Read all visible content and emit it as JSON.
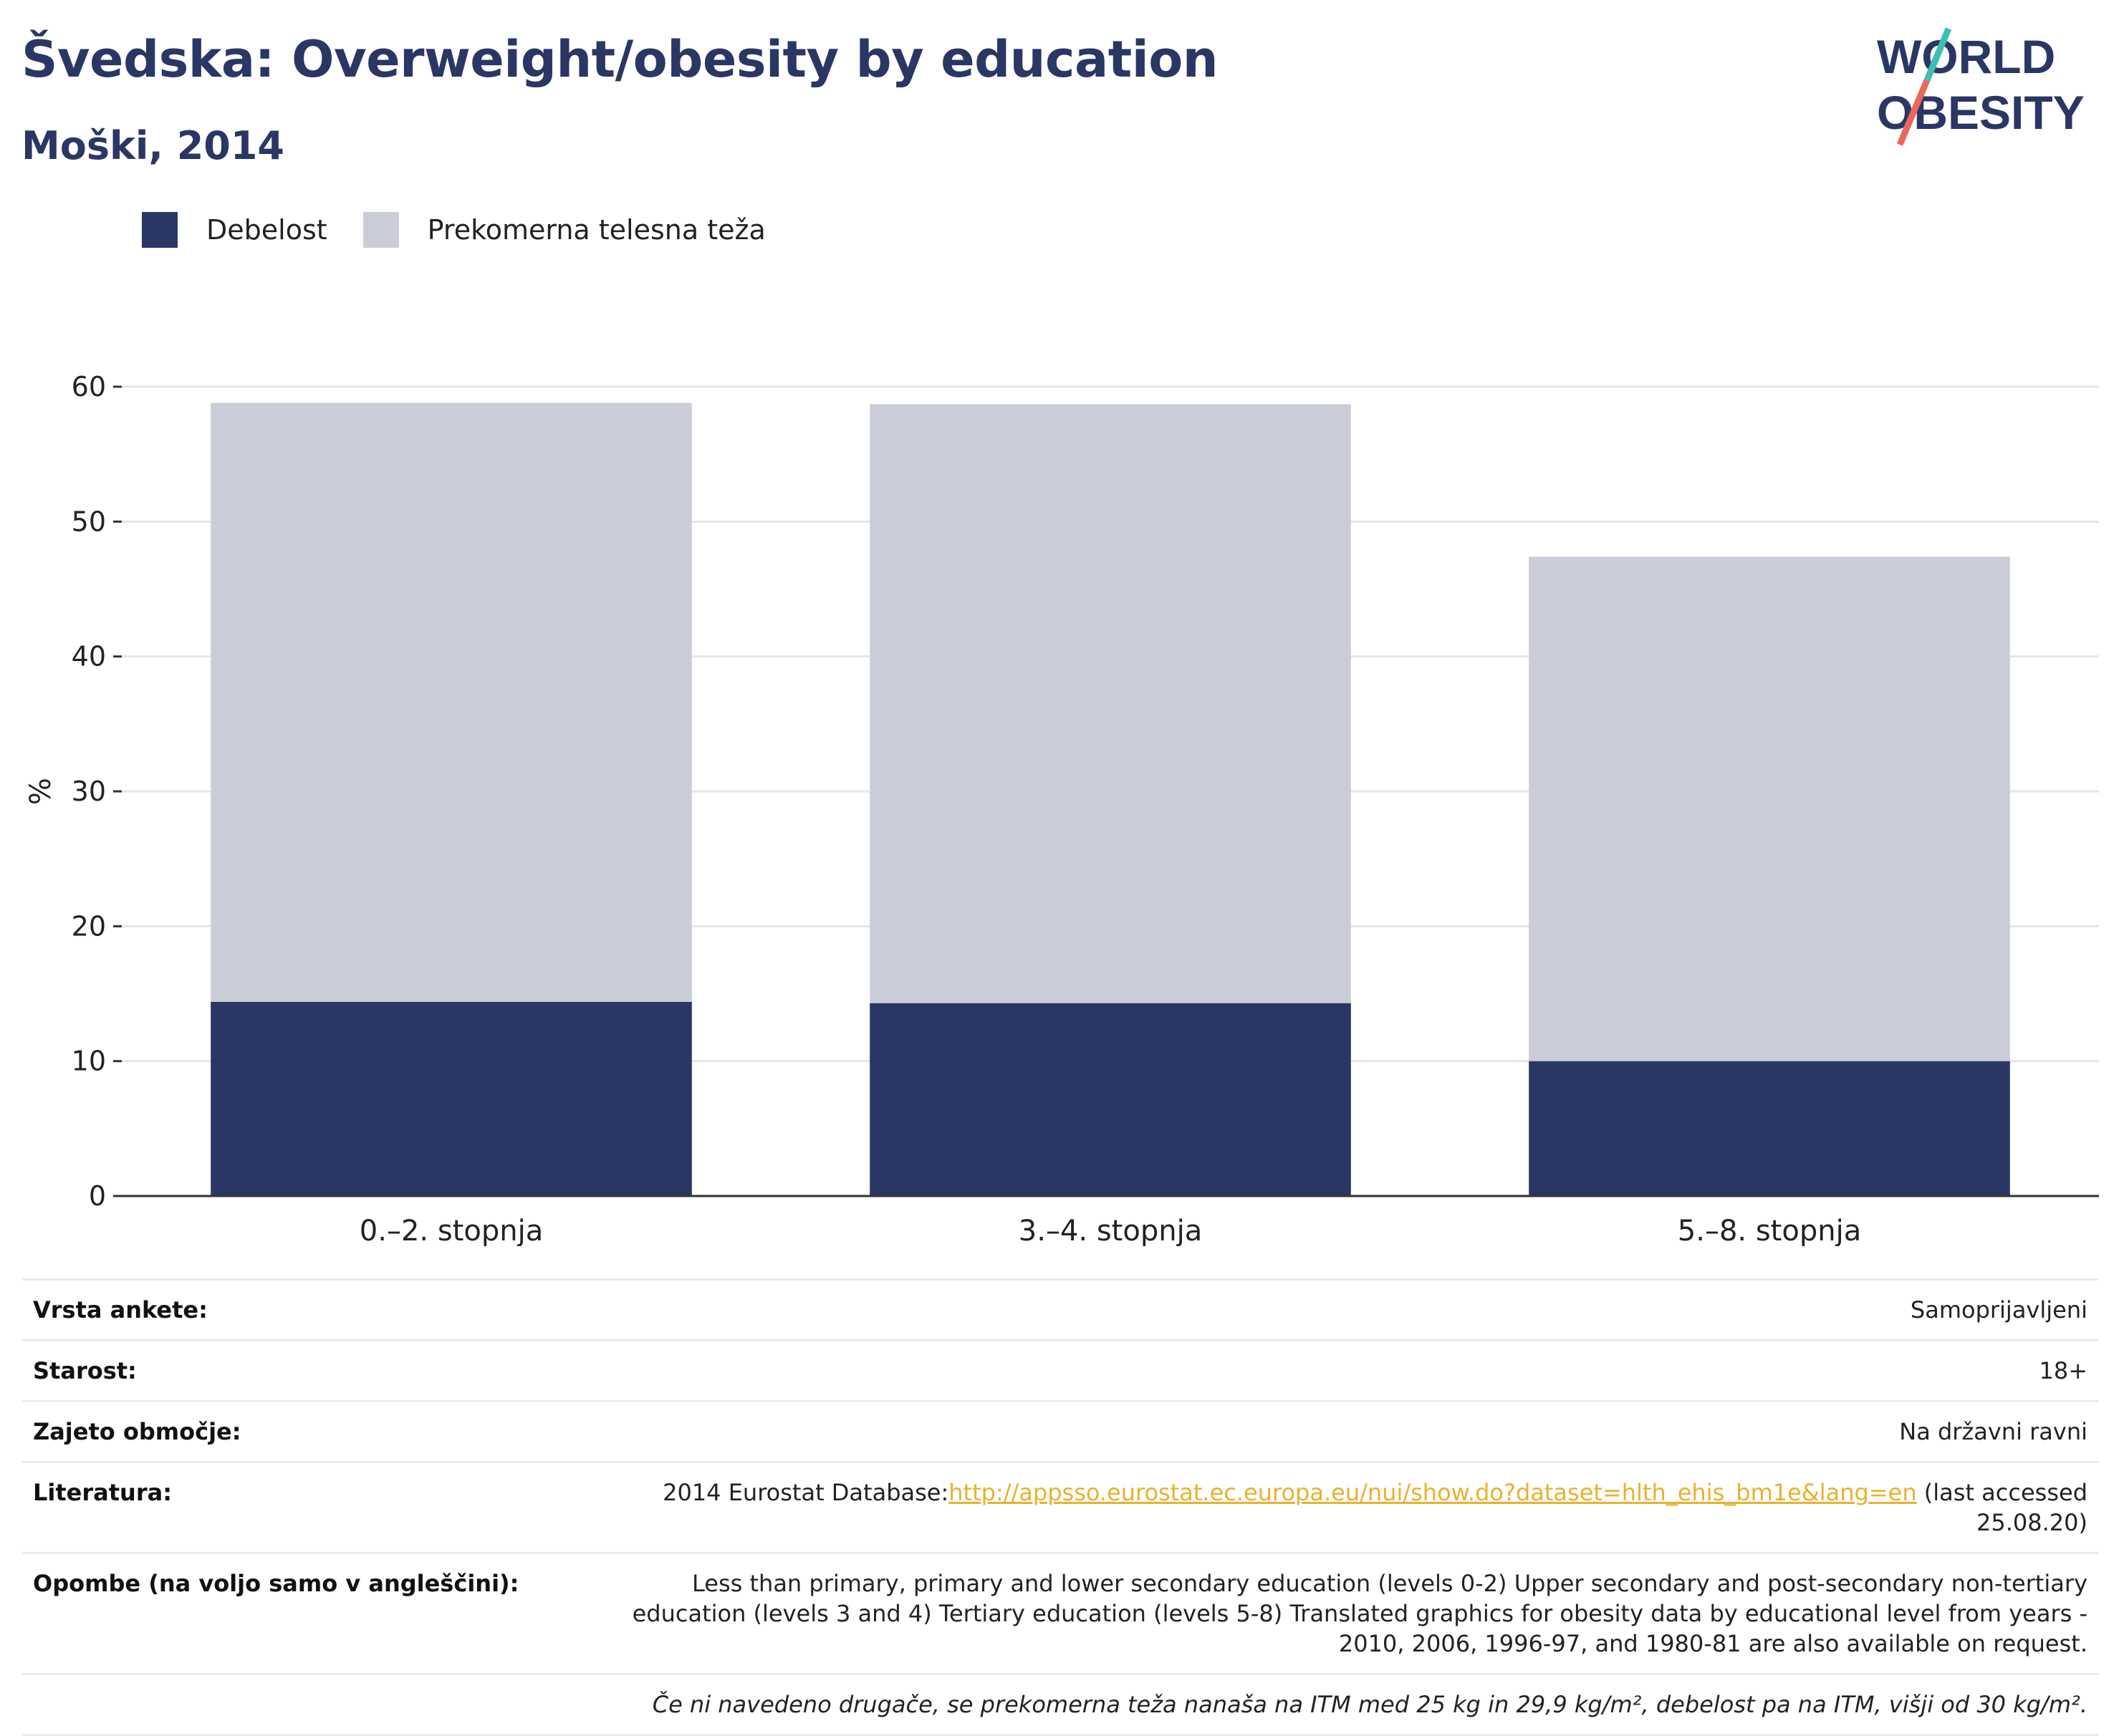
{
  "header": {
    "title": "Švedska: Overweight/obesity by education",
    "subtitle": "Moški, 2014",
    "logo_line1": "WORLD",
    "logo_line2": "OBESITY"
  },
  "legend": [
    {
      "label": "Debelost",
      "color": "#2a3764"
    },
    {
      "label": "Prekomerna telesna teža",
      "color": "#caccd8"
    }
  ],
  "chart_data": {
    "type": "bar",
    "stacked": true,
    "categories": [
      "0.–2. stopnja",
      "3.–4. stopnja",
      "5.–8. stopnja"
    ],
    "series": [
      {
        "name": "Debelost",
        "values": [
          14.4,
          14.3,
          10.0
        ],
        "color": "#2a3764"
      },
      {
        "name": "Prekomerna telesna teža",
        "values": [
          44.4,
          44.4,
          37.4
        ],
        "color": "#caccd8"
      }
    ],
    "ylabel": "%",
    "ylim": [
      0,
      60
    ],
    "yticks": [
      0,
      10,
      20,
      30,
      40,
      50,
      60
    ],
    "grid": true,
    "legend_position": "top-left"
  },
  "info": {
    "survey_label": "Vrsta ankete:",
    "survey_value": "Samoprijavljeni",
    "age_label": "Starost:",
    "age_value": "18+",
    "coverage_label": "Zajeto območje:",
    "coverage_value": "Na državni ravni",
    "ref_label": "Literatura:",
    "ref_prefix": "2014 Eurostat Database:",
    "ref_link": "http://appsso.eurostat.ec.europa.eu/nui/show.do?dataset=hlth_ehis_bm1e&lang=en",
    "ref_suffix": " (last accessed 25.08.20)",
    "notes_label": "Opombe (na voljo samo v angleščini):",
    "notes_value": "Less than primary, primary and lower secondary education (levels 0-2) Upper secondary and post-secondary non-tertiary education (levels 3 and 4) Tertiary education (levels 5-8) Translated graphics for obesity data by educational level from years - 2010, 2006, 1996-97, and 1980-81 are also available on request.",
    "footnote": "Če ni navedeno drugače, se prekomerna teža nanaša na ITM med 25 kg in 29,9 kg/m², debelost pa na ITM, višji od 30 kg/m²."
  }
}
